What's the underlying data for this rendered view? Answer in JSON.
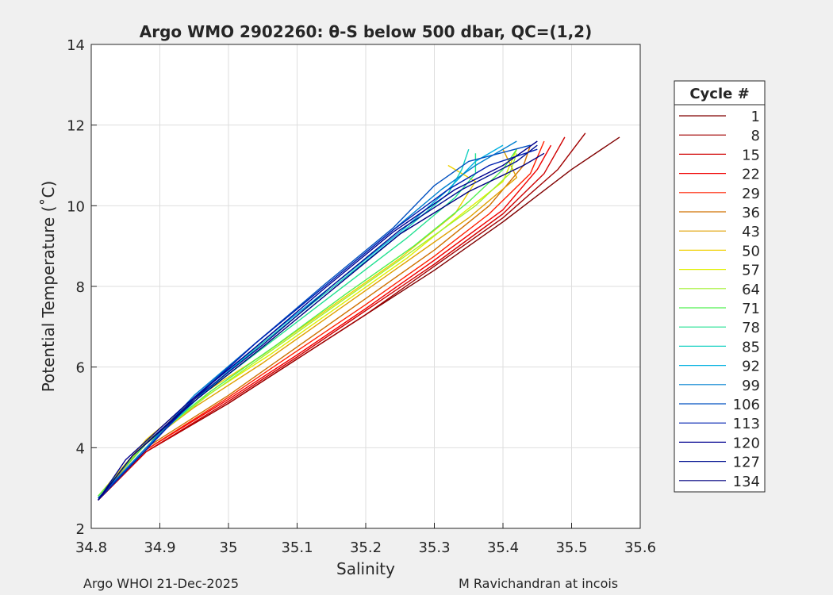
{
  "footer": {
    "left": "Argo WHOI 21-Dec-2025",
    "right": "M Ravichandran at incois"
  },
  "chart_data": {
    "type": "line",
    "title": "Argo WMO 2902260: θ-S below 500 dbar,  QC=(1,2)",
    "xlabel": "Salinity",
    "ylabel": "Potential Temperature (˚C)",
    "xlim": [
      34.8,
      35.6
    ],
    "ylim": [
      2,
      14
    ],
    "xticks": [
      "34.8",
      "34.9",
      "35",
      "35.1",
      "35.2",
      "35.3",
      "35.4",
      "35.5",
      "35.6"
    ],
    "yticks": [
      "2",
      "4",
      "6",
      "8",
      "10",
      "12",
      "14"
    ],
    "grid": true,
    "legend": {
      "title": "Cycle #",
      "placement": "outside-right",
      "entries": [
        {
          "label": "1",
          "color": "#800000"
        },
        {
          "label": "8",
          "color": "#a00000"
        },
        {
          "label": "15",
          "color": "#d00000"
        },
        {
          "label": "22",
          "color": "#f00000"
        },
        {
          "label": "29",
          "color": "#ff2000"
        },
        {
          "label": "36",
          "color": "#d07000"
        },
        {
          "label": "43",
          "color": "#e0a000"
        },
        {
          "label": "50",
          "color": "#f0d000"
        },
        {
          "label": "57",
          "color": "#e0f000"
        },
        {
          "label": "64",
          "color": "#a0f030"
        },
        {
          "label": "71",
          "color": "#50f050"
        },
        {
          "label": "78",
          "color": "#20e090"
        },
        {
          "label": "85",
          "color": "#10d0c0"
        },
        {
          "label": "92",
          "color": "#00b0e0"
        },
        {
          "label": "99",
          "color": "#0080d0"
        },
        {
          "label": "106",
          "color": "#0050c0"
        },
        {
          "label": "113",
          "color": "#0020b0"
        },
        {
          "label": "120",
          "color": "#000090"
        },
        {
          "label": "127",
          "color": "#001090"
        },
        {
          "label": "134",
          "color": "#000080"
        }
      ]
    },
    "series": [
      {
        "color": "#800000",
        "points": [
          [
            34.81,
            2.7
          ],
          [
            34.88,
            3.9
          ],
          [
            35.0,
            5.1
          ],
          [
            35.1,
            6.2
          ],
          [
            35.2,
            7.3
          ],
          [
            35.3,
            8.4
          ],
          [
            35.4,
            9.6
          ],
          [
            35.5,
            10.9
          ],
          [
            35.57,
            11.7
          ]
        ]
      },
      {
        "color": "#a00000",
        "points": [
          [
            34.81,
            2.7
          ],
          [
            34.88,
            3.9
          ],
          [
            35.0,
            5.1
          ],
          [
            35.1,
            6.2
          ],
          [
            35.2,
            7.3
          ],
          [
            35.3,
            8.5
          ],
          [
            35.4,
            9.7
          ],
          [
            35.48,
            10.9
          ],
          [
            35.52,
            11.8
          ]
        ]
      },
      {
        "color": "#d00000",
        "points": [
          [
            34.81,
            2.7
          ],
          [
            34.88,
            3.9
          ],
          [
            35.0,
            5.15
          ],
          [
            35.1,
            6.25
          ],
          [
            35.2,
            7.4
          ],
          [
            35.3,
            8.55
          ],
          [
            35.4,
            9.8
          ],
          [
            35.46,
            10.8
          ],
          [
            35.49,
            11.7
          ]
        ]
      },
      {
        "color": "#f00000",
        "points": [
          [
            34.81,
            2.7
          ],
          [
            34.88,
            3.95
          ],
          [
            35.0,
            5.2
          ],
          [
            35.1,
            6.3
          ],
          [
            35.2,
            7.45
          ],
          [
            35.3,
            8.65
          ],
          [
            35.4,
            9.9
          ],
          [
            35.45,
            10.9
          ],
          [
            35.47,
            11.5
          ]
        ]
      },
      {
        "color": "#ff2000",
        "points": [
          [
            34.81,
            2.7
          ],
          [
            34.88,
            3.95
          ],
          [
            35.0,
            5.25
          ],
          [
            35.1,
            6.4
          ],
          [
            35.2,
            7.55
          ],
          [
            35.3,
            8.75
          ],
          [
            35.38,
            9.8
          ],
          [
            35.44,
            10.8
          ],
          [
            35.46,
            11.6
          ]
        ]
      },
      {
        "color": "#d07000",
        "points": [
          [
            34.81,
            2.75
          ],
          [
            34.88,
            4.0
          ],
          [
            35.0,
            5.3
          ],
          [
            35.1,
            6.5
          ],
          [
            35.2,
            7.7
          ],
          [
            35.3,
            8.9
          ],
          [
            35.38,
            10.0
          ],
          [
            35.43,
            11.0
          ],
          [
            35.44,
            11.5
          ]
        ]
      },
      {
        "color": "#e0a000",
        "points": [
          [
            34.81,
            2.75
          ],
          [
            34.88,
            4.1
          ],
          [
            34.95,
            5.0
          ],
          [
            35.05,
            6.1
          ],
          [
            35.15,
            7.3
          ],
          [
            35.25,
            8.5
          ],
          [
            35.35,
            9.7
          ],
          [
            35.42,
            10.7
          ],
          [
            35.4,
            11.4
          ]
        ]
      },
      {
        "color": "#f0d000",
        "points": [
          [
            34.81,
            2.8
          ],
          [
            34.88,
            4.2
          ],
          [
            34.95,
            5.2
          ],
          [
            35.05,
            6.3
          ],
          [
            35.15,
            7.5
          ],
          [
            35.25,
            8.7
          ],
          [
            35.33,
            9.8
          ],
          [
            35.36,
            10.6
          ],
          [
            35.32,
            11.0
          ]
        ]
      },
      {
        "color": "#e0f000",
        "points": [
          [
            34.81,
            2.8
          ],
          [
            34.88,
            4.15
          ],
          [
            34.96,
            5.2
          ],
          [
            35.06,
            6.3
          ],
          [
            35.16,
            7.5
          ],
          [
            35.26,
            8.7
          ],
          [
            35.34,
            9.8
          ],
          [
            35.4,
            10.6
          ],
          [
            35.42,
            11.4
          ]
        ]
      },
      {
        "color": "#a0f030",
        "points": [
          [
            34.81,
            2.8
          ],
          [
            34.88,
            4.1
          ],
          [
            34.97,
            5.3
          ],
          [
            35.07,
            6.5
          ],
          [
            35.17,
            7.7
          ],
          [
            35.27,
            8.9
          ],
          [
            35.36,
            10.0
          ],
          [
            35.41,
            10.8
          ],
          [
            35.42,
            11.3
          ]
        ]
      },
      {
        "color": "#50f050",
        "points": [
          [
            34.81,
            2.8
          ],
          [
            34.88,
            4.1
          ],
          [
            34.97,
            5.35
          ],
          [
            35.07,
            6.55
          ],
          [
            35.17,
            7.8
          ],
          [
            35.27,
            9.0
          ],
          [
            35.35,
            10.1
          ],
          [
            35.4,
            10.9
          ],
          [
            35.42,
            11.4
          ]
        ]
      },
      {
        "color": "#20e090",
        "points": [
          [
            34.81,
            2.75
          ],
          [
            34.88,
            4.0
          ],
          [
            34.96,
            5.3
          ],
          [
            35.06,
            6.6
          ],
          [
            35.16,
            7.9
          ],
          [
            35.26,
            9.2
          ],
          [
            35.33,
            10.2
          ],
          [
            35.36,
            10.8
          ],
          [
            35.36,
            11.3
          ]
        ]
      },
      {
        "color": "#10d0c0",
        "points": [
          [
            34.81,
            2.75
          ],
          [
            34.88,
            4.0
          ],
          [
            34.96,
            5.3
          ],
          [
            35.05,
            6.6
          ],
          [
            35.15,
            7.95
          ],
          [
            35.25,
            9.3
          ],
          [
            35.32,
            10.3
          ],
          [
            35.34,
            10.9
          ],
          [
            35.35,
            11.4
          ]
        ]
      },
      {
        "color": "#00b0e0",
        "points": [
          [
            34.81,
            2.75
          ],
          [
            34.88,
            4.0
          ],
          [
            34.96,
            5.3
          ],
          [
            35.05,
            6.65
          ],
          [
            35.15,
            8.0
          ],
          [
            35.25,
            9.35
          ],
          [
            35.32,
            10.4
          ],
          [
            35.36,
            11.1
          ],
          [
            35.4,
            11.5
          ]
        ]
      },
      {
        "color": "#0080d0",
        "points": [
          [
            34.81,
            2.75
          ],
          [
            34.88,
            4.0
          ],
          [
            34.95,
            5.3
          ],
          [
            35.04,
            6.6
          ],
          [
            35.14,
            8.0
          ],
          [
            35.24,
            9.4
          ],
          [
            35.31,
            10.4
          ],
          [
            35.36,
            11.0
          ],
          [
            35.42,
            11.6
          ]
        ]
      },
      {
        "color": "#0050c0",
        "points": [
          [
            34.81,
            2.75
          ],
          [
            34.88,
            3.95
          ],
          [
            34.95,
            5.25
          ],
          [
            35.04,
            6.6
          ],
          [
            35.14,
            8.05
          ],
          [
            35.24,
            9.45
          ],
          [
            35.3,
            10.5
          ],
          [
            35.35,
            11.1
          ],
          [
            35.44,
            11.5
          ]
        ]
      },
      {
        "color": "#0020b0",
        "points": [
          [
            34.81,
            2.7
          ],
          [
            34.88,
            3.95
          ],
          [
            34.95,
            5.2
          ],
          [
            35.04,
            6.6
          ],
          [
            35.14,
            8.0
          ],
          [
            35.24,
            9.4
          ],
          [
            35.32,
            10.4
          ],
          [
            35.38,
            11.0
          ],
          [
            35.45,
            11.4
          ]
        ]
      },
      {
        "color": "#000090",
        "points": [
          [
            34.81,
            2.7
          ],
          [
            34.85,
            3.7
          ],
          [
            34.94,
            5.1
          ],
          [
            35.04,
            6.5
          ],
          [
            35.14,
            7.95
          ],
          [
            35.24,
            9.35
          ],
          [
            35.33,
            10.4
          ],
          [
            35.4,
            11.0
          ],
          [
            35.45,
            11.6
          ]
        ]
      },
      {
        "color": "#001090",
        "points": [
          [
            34.81,
            2.7
          ],
          [
            34.86,
            3.8
          ],
          [
            34.95,
            5.2
          ],
          [
            35.05,
            6.55
          ],
          [
            35.15,
            8.0
          ],
          [
            35.25,
            9.4
          ],
          [
            35.34,
            10.4
          ],
          [
            35.42,
            11.1
          ],
          [
            35.45,
            11.5
          ]
        ]
      },
      {
        "color": "#000080",
        "points": [
          [
            34.81,
            2.7
          ],
          [
            34.86,
            3.8
          ],
          [
            34.95,
            5.15
          ],
          [
            35.05,
            6.5
          ],
          [
            35.15,
            7.9
          ],
          [
            35.25,
            9.3
          ],
          [
            35.35,
            10.35
          ],
          [
            35.43,
            11.0
          ],
          [
            35.46,
            11.3
          ]
        ]
      }
    ]
  }
}
